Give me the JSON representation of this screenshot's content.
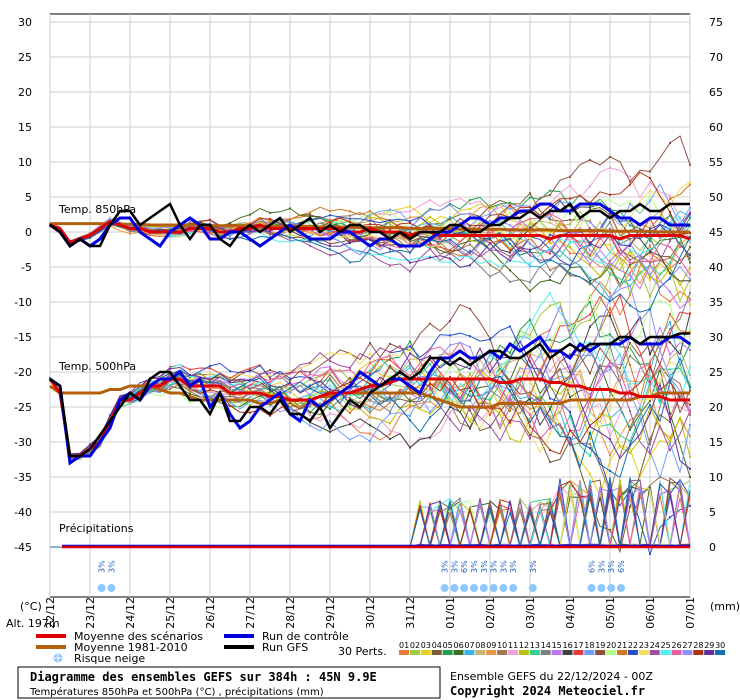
{
  "chart_data": {
    "type": "line",
    "title": "Diagramme des ensembles GEFS sur 384h : 45N 9.9E",
    "subtitle": "Températures 850hPa et 500hPa (°C) , précipitations (mm)",
    "run_info": "Ensemble GEFS du 22/12/2024 - 00Z",
    "copyright": "Copyright 2024 Meteociel.fr",
    "left_axis_unit": "(°C)",
    "right_axis_unit": "(mm)",
    "altitude_label": "Alt. 197m",
    "left_ticks": [
      "30",
      "25",
      "20",
      "15",
      "10",
      "5",
      "0",
      "-5",
      "-10",
      "-15",
      "-20",
      "-25",
      "-30",
      "-35",
      "-40",
      "-45"
    ],
    "right_ticks": [
      "75",
      "70",
      "65",
      "60",
      "55",
      "50",
      "45",
      "40",
      "35",
      "30",
      "25",
      "20",
      "15",
      "10",
      "5",
      "0"
    ],
    "left_range": [
      -45,
      30
    ],
    "date_labels": [
      "22/12",
      "23/12",
      "24/12",
      "25/12",
      "26/12",
      "27/12",
      "28/12",
      "29/12",
      "30/12",
      "31/12",
      "01/01",
      "02/01",
      "03/01",
      "04/01",
      "05/01",
      "06/01",
      "07/01"
    ],
    "section_labels": {
      "t850": "Temp. 850hPa",
      "t500": "Temp. 500hPa",
      "precip": "Précipitations"
    },
    "legend": {
      "mean": "Moyenne des scénarios",
      "clim": "Moyenne 1981-2010",
      "snow": "Risque neige",
      "control": "Run de contrôle",
      "gfs": "Run GFS",
      "perts_label": "30 Perts.",
      "pert_numbers": [
        "01",
        "02",
        "03",
        "04",
        "05",
        "06",
        "07",
        "08",
        "09",
        "10",
        "11",
        "12",
        "13",
        "14",
        "15",
        "16",
        "17",
        "18",
        "19",
        "20",
        "21",
        "22",
        "23",
        "24",
        "25",
        "26",
        "27",
        "28",
        "29",
        "30"
      ],
      "pert_colors": [
        "#e8783c",
        "#a0c840",
        "#e8d020",
        "#7c5c34",
        "#20a050",
        "#406c20",
        "#3cb4e8",
        "#c8b478",
        "#e89840",
        "#a07850",
        "#f0a0d8",
        "#c0c000",
        "#30d090",
        "#7f7f7f",
        "#c078f0",
        "#404040",
        "#e83c3c",
        "#70a0ff",
        "#905040",
        "#b4ff8c",
        "#d07820",
        "#2850c8",
        "#f0e060",
        "#a050a0",
        "#50f0f0",
        "#e85ca0",
        "#9090ff",
        "#b03010",
        "#6030a0",
        "#1070b0"
      ]
    },
    "snow_risk_pct": [
      "3%",
      "3%",
      "3%",
      "3%",
      "6%",
      "3%",
      "3%",
      "3%",
      "3%",
      "3%",
      "3%",
      "6%",
      "3%",
      "3%",
      "6%"
    ],
    "series": [
      {
        "name": "Moyenne des scénarios",
        "color": "#e00000",
        "t850": [
          1,
          0.5,
          -1.5,
          -1,
          -0.5,
          0.5,
          1.5,
          1,
          0.5,
          0.5,
          0,
          0,
          0,
          0,
          0.5,
          0.5,
          0.5,
          0,
          0,
          0.5,
          0.5,
          1,
          0.5,
          0.5,
          0.5,
          0.5,
          0.5,
          0.5,
          0.5,
          0.5,
          0,
          0,
          0.5,
          0,
          0,
          0,
          -0.5,
          0,
          0,
          -0.5,
          -0.5,
          -0.5,
          -0.5,
          -0.5,
          -0.5,
          -0.5,
          -0.5,
          -0.5,
          -0.5,
          -0.5,
          -1,
          -0.5,
          -0.5,
          -0.5,
          -0.5,
          -0.5,
          -0.5,
          -1,
          -0.5,
          -0.5,
          -0.5,
          -0.5,
          -0.5,
          -0.5,
          -1
        ],
        "t500": [
          -21,
          -23,
          -32,
          -32,
          -31,
          -30,
          -27,
          -24,
          -24,
          -23,
          -22,
          -22,
          -21,
          -21,
          -22,
          -22,
          -22,
          -22,
          -23,
          -23,
          -23,
          -23,
          -23.5,
          -23.5,
          -24,
          -24,
          -24,
          -23.5,
          -23,
          -23,
          -23,
          -22.5,
          -22,
          -22,
          -21.5,
          -21,
          -21,
          -21,
          -21,
          -21,
          -21,
          -21,
          -21,
          -21,
          -21,
          -21.5,
          -21.5,
          -21,
          -21,
          -21,
          -21.5,
          -21.5,
          -22,
          -22,
          -22.5,
          -22.5,
          -22.5,
          -23,
          -23,
          -23.5,
          -23.5,
          -23.5,
          -24,
          -24,
          -24
        ]
      },
      {
        "name": "Moyenne 1981-2010",
        "color": "#b4600a",
        "t850": [
          1.2,
          1.2,
          1.2,
          1.2,
          1.2,
          1.2,
          1.1,
          1.1,
          1.1,
          1.1,
          1.0,
          1.0,
          1.0,
          1.0,
          1.0,
          1.0,
          0.9,
          0.9,
          0.9,
          0.9,
          0.9,
          0.8,
          0.8,
          0.8,
          0.8,
          0.8,
          0.8,
          0.7,
          0.7,
          0.7,
          0.7,
          0.6,
          0.6,
          0.6,
          0.6,
          0.6,
          0.5,
          0.5,
          0.5,
          0.5,
          0.5,
          0.4,
          0.4,
          0.4,
          0.4,
          0.4,
          0.3,
          0.3,
          0.3,
          0.3,
          0.3,
          0.2,
          0.2,
          0.2,
          0.2,
          0.2,
          0.1,
          0.1,
          0.1,
          0.1,
          0.1,
          0.0,
          0.0,
          0.0,
          0.0
        ],
        "t500": [
          -22,
          -23,
          -23,
          -23,
          -23,
          -23,
          -22.5,
          -22.5,
          -22,
          -22,
          -22,
          -22.5,
          -23,
          -23,
          -23.5,
          -24,
          -24,
          -24,
          -24,
          -24,
          -24,
          -24.5,
          -24.5,
          -24,
          -24,
          -24,
          -24,
          -23.5,
          -23.5,
          -23,
          -23,
          -23,
          -23,
          -23,
          -23,
          -23,
          -23,
          -23,
          -23.5,
          -24,
          -24.5,
          -25,
          -25,
          -25,
          -25,
          -24.5,
          -24.5,
          -24.5,
          -24.5,
          -24.5,
          -24.5,
          -24.5,
          -24,
          -24,
          -24,
          -24,
          -24,
          -24,
          -24,
          -23.5,
          -23.5,
          -23,
          -23,
          -23,
          -23
        ]
      },
      {
        "name": "Run de contrôle",
        "color": "#0000e0",
        "t850": [
          1,
          0,
          -2,
          -1,
          -2,
          -1,
          1,
          2,
          2,
          0,
          -1,
          -2,
          0,
          1,
          2,
          1,
          -1,
          -1,
          0,
          0,
          -1,
          -2,
          -1,
          0,
          1,
          0,
          -1,
          -1,
          -1,
          0,
          0,
          -1,
          -2,
          -1,
          -1,
          -2,
          -2,
          -2,
          -1,
          0,
          0,
          1,
          2,
          2,
          1,
          2,
          2,
          3,
          3,
          4,
          4,
          3,
          3,
          4,
          4,
          4,
          3,
          2,
          2,
          1,
          2,
          2,
          1,
          1,
          1
        ],
        "t500": [
          -21,
          -22,
          -33,
          -32,
          -32,
          -30,
          -28,
          -24,
          -23,
          -24,
          -22,
          -21,
          -21,
          -20,
          -22,
          -21,
          -25,
          -23,
          -26,
          -28,
          -27,
          -25,
          -24,
          -23,
          -26,
          -27,
          -24,
          -25,
          -24,
          -23,
          -22,
          -20,
          -21,
          -22,
          -21,
          -21,
          -22,
          -23,
          -20,
          -18,
          -18,
          -17,
          -18,
          -18,
          -17,
          -18,
          -16,
          -17,
          -16,
          -15,
          -17,
          -17,
          -18,
          -16,
          -17,
          -16,
          -16,
          -16,
          -15,
          -16,
          -16,
          -16,
          -15,
          -15,
          -16
        ]
      },
      {
        "name": "Run GFS",
        "color": "#000000",
        "t850": [
          1,
          0,
          -2,
          -1,
          -2,
          -2,
          1,
          3,
          3,
          1,
          2,
          3,
          4,
          1,
          -1,
          1,
          1,
          -1,
          -2,
          0,
          1,
          0,
          1,
          2,
          0,
          1,
          2,
          0,
          1,
          0,
          1,
          1,
          0,
          0,
          -1,
          0,
          -1,
          0,
          0,
          0,
          1,
          1,
          0,
          0,
          1,
          1,
          2,
          2,
          3,
          2,
          3,
          3,
          4,
          2,
          3,
          3,
          2,
          3,
          3,
          4,
          3,
          3,
          4,
          4,
          4
        ],
        "t500": [
          -21,
          -22,
          -32,
          -32,
          -31,
          -29,
          -27,
          -25,
          -23,
          -24,
          -21,
          -20,
          -20,
          -22,
          -24,
          -24,
          -26,
          -23,
          -27,
          -27,
          -25,
          -25,
          -26,
          -24,
          -26,
          -26,
          -27,
          -25,
          -28,
          -26,
          -24,
          -25,
          -23,
          -22,
          -21,
          -20,
          -21,
          -20,
          -18,
          -18,
          -19,
          -18,
          -19,
          -18,
          -17,
          -17,
          -18,
          -18,
          -17,
          -16,
          -18,
          -17,
          -16,
          -17,
          -16,
          -16,
          -16,
          -15,
          -15,
          -16,
          -15,
          -15,
          -15,
          -14.5,
          -14.5
        ]
      }
    ],
    "n_steps": 65,
    "step_hours": 6
  }
}
